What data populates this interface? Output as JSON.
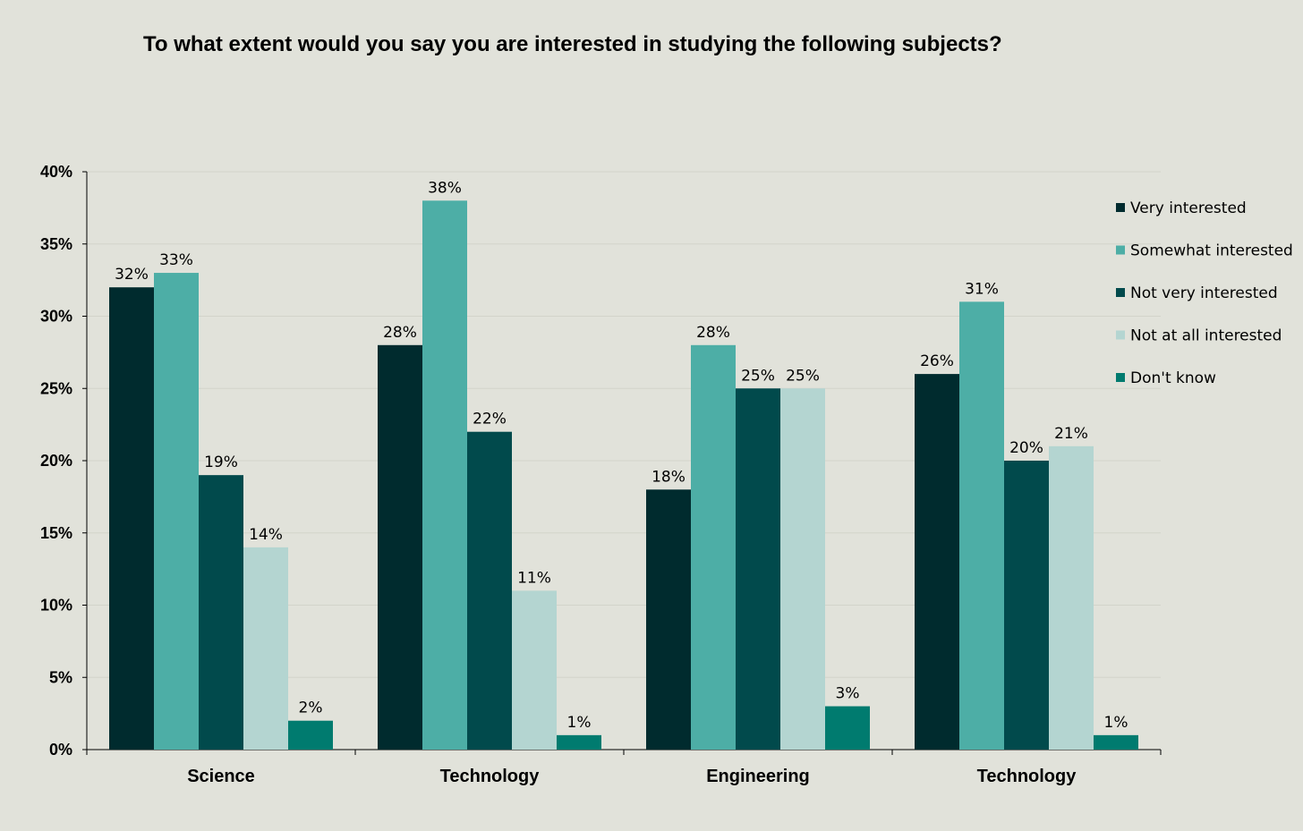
{
  "chart_data": {
    "type": "bar",
    "title": "To what extent would you say you are interested in studying the following subjects?",
    "categories": [
      "Science",
      "Technology",
      "Engineering",
      "Technology"
    ],
    "series": [
      {
        "name": "Very interested",
        "color": "#002b2e",
        "values": [
          32,
          28,
          18,
          26
        ]
      },
      {
        "name": "Somewhat interested",
        "color": "#4daea6",
        "values": [
          33,
          38,
          28,
          31
        ]
      },
      {
        "name": "Not very interested",
        "color": "#014a4c",
        "values": [
          19,
          22,
          25,
          20
        ]
      },
      {
        "name": "Not at all interested",
        "color": "#b4d5d1",
        "values": [
          14,
          11,
          25,
          21
        ]
      },
      {
        "name": "Don't know",
        "color": "#007b6f",
        "values": [
          2,
          1,
          3,
          1
        ]
      }
    ],
    "ylim": [
      0,
      40
    ],
    "yticks": [
      "0%",
      "5%",
      "10%",
      "15%",
      "20%",
      "25%",
      "30%",
      "35%",
      "40%"
    ],
    "value_suffix": "%",
    "grid": true,
    "legend_position": "right"
  }
}
